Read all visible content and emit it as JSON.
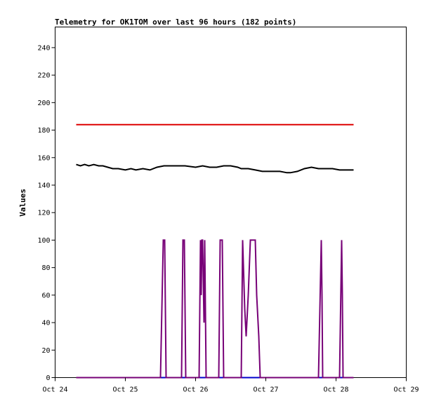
{
  "chart_data": {
    "type": "line",
    "title": "Telemetry for OK1TOM over last 96 hours (182 points)",
    "xlabel": "",
    "ylabel": "Values",
    "xlim": [
      "Oct 24",
      "Oct 29"
    ],
    "ylim": [
      0,
      255
    ],
    "x_ticks": [
      "Oct 24",
      "Oct 25",
      "Oct 26",
      "Oct 27",
      "Oct 28",
      "Oct 29"
    ],
    "y_ticks": [
      0,
      20,
      40,
      60,
      80,
      100,
      120,
      140,
      160,
      180,
      200,
      220,
      240
    ],
    "grid": false,
    "series": [
      {
        "color": "#dd0000",
        "points": [
          [
            0.3,
            184
          ],
          [
            4.25,
            184
          ]
        ]
      },
      {
        "color": "#000000",
        "points": [
          [
            0.3,
            155
          ],
          [
            0.36,
            154
          ],
          [
            0.42,
            155
          ],
          [
            0.48,
            154
          ],
          [
            0.55,
            155
          ],
          [
            0.62,
            154
          ],
          [
            0.68,
            154
          ],
          [
            0.75,
            153
          ],
          [
            0.82,
            152
          ],
          [
            0.9,
            152
          ],
          [
            1.0,
            151
          ],
          [
            1.08,
            152
          ],
          [
            1.15,
            151
          ],
          [
            1.25,
            152
          ],
          [
            1.35,
            151
          ],
          [
            1.45,
            153
          ],
          [
            1.55,
            154
          ],
          [
            1.7,
            154
          ],
          [
            1.85,
            154
          ],
          [
            2.0,
            153
          ],
          [
            2.1,
            154
          ],
          [
            2.2,
            153
          ],
          [
            2.3,
            153
          ],
          [
            2.4,
            154
          ],
          [
            2.5,
            154
          ],
          [
            2.6,
            153
          ],
          [
            2.65,
            152
          ],
          [
            2.75,
            152
          ],
          [
            2.85,
            151
          ],
          [
            2.95,
            150
          ],
          [
            3.05,
            150
          ],
          [
            3.2,
            150
          ],
          [
            3.3,
            149
          ],
          [
            3.35,
            149
          ],
          [
            3.45,
            150
          ],
          [
            3.55,
            152
          ],
          [
            3.65,
            153
          ],
          [
            3.75,
            152
          ],
          [
            3.85,
            152
          ],
          [
            3.95,
            152
          ],
          [
            4.05,
            151
          ],
          [
            4.15,
            151
          ],
          [
            4.25,
            151
          ]
        ]
      },
      {
        "color": "#006666",
        "points": [
          [
            0.3,
            0
          ],
          [
            4.25,
            0
          ]
        ]
      },
      {
        "color": "#0000cc",
        "points": [
          [
            0.3,
            0
          ],
          [
            4.25,
            0
          ]
        ]
      },
      {
        "color": "#770077",
        "points": [
          [
            0.3,
            0
          ],
          [
            1.5,
            0
          ],
          [
            1.52,
            50
          ],
          [
            1.54,
            100
          ],
          [
            1.56,
            100
          ],
          [
            1.58,
            0
          ],
          [
            1.8,
            0
          ],
          [
            1.82,
            100
          ],
          [
            1.84,
            100
          ],
          [
            1.86,
            0
          ],
          [
            2.05,
            0
          ],
          [
            2.07,
            100
          ],
          [
            2.08,
            60
          ],
          [
            2.09,
            100
          ],
          [
            2.1,
            100
          ],
          [
            2.12,
            40
          ],
          [
            2.13,
            100
          ],
          [
            2.15,
            0
          ],
          [
            2.33,
            0
          ],
          [
            2.35,
            100
          ],
          [
            2.38,
            100
          ],
          [
            2.4,
            0
          ],
          [
            2.65,
            0
          ],
          [
            2.67,
            100
          ],
          [
            2.7,
            50
          ],
          [
            2.72,
            30
          ],
          [
            2.75,
            60
          ],
          [
            2.78,
            100
          ],
          [
            2.85,
            100
          ],
          [
            2.87,
            60
          ],
          [
            2.9,
            30
          ],
          [
            2.92,
            0
          ],
          [
            3.75,
            0
          ],
          [
            3.77,
            50
          ],
          [
            3.79,
            100
          ],
          [
            3.8,
            60
          ],
          [
            3.81,
            0
          ],
          [
            4.05,
            0
          ],
          [
            4.08,
            100
          ],
          [
            4.09,
            60
          ],
          [
            4.1,
            0
          ],
          [
            4.25,
            0
          ]
        ]
      }
    ]
  }
}
